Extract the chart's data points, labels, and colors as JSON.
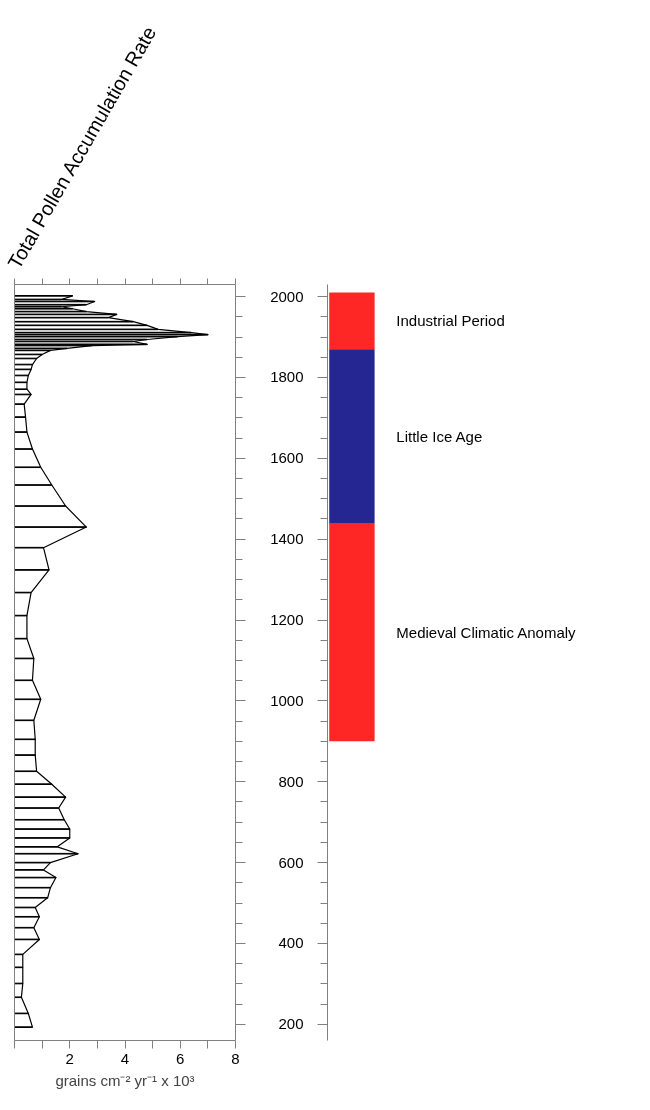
{
  "chart_data": [
    {
      "type": "bar",
      "orientation": "horizontal",
      "title": "Total Pollen Accumulation Rate",
      "xlabel": "grains cm⁻² yr⁻¹ x 10³",
      "xlim": [
        0,
        8
      ],
      "ylim": [
        160,
        2030
      ],
      "tick_labels": "x",
      "xticks": [
        {
          "value": 0,
          "label": null
        },
        {
          "value": 1,
          "label": null
        },
        2,
        {
          "value": 3,
          "label": null
        },
        4,
        {
          "value": 5,
          "label": null
        },
        6,
        {
          "value": 7,
          "label": null
        },
        8
      ],
      "yticks": [
        200,
        {
          "value": 250,
          "label": null
        },
        {
          "value": 300,
          "label": null
        },
        {
          "value": 350,
          "label": null
        },
        400,
        {
          "value": 450,
          "label": null
        },
        {
          "value": 500,
          "label": null
        },
        {
          "value": 550,
          "label": null
        },
        600,
        {
          "value": 650,
          "label": null
        },
        {
          "value": 700,
          "label": null
        },
        {
          "value": 750,
          "label": null
        },
        800,
        {
          "value": 850,
          "label": null
        },
        {
          "value": 900,
          "label": null
        },
        {
          "value": 950,
          "label": null
        },
        1000,
        {
          "value": 1050,
          "label": null
        },
        {
          "value": 1100,
          "label": null
        },
        {
          "value": 1150,
          "label": null
        },
        1200,
        {
          "value": 1250,
          "label": null
        },
        {
          "value": 1300,
          "label": null
        },
        {
          "value": 1350,
          "label": null
        },
        1400,
        {
          "value": 1450,
          "label": null
        },
        {
          "value": 1500,
          "label": null
        },
        {
          "value": 1550,
          "label": null
        },
        1600,
        {
          "value": 1650,
          "label": null
        },
        {
          "value": 1700,
          "label": null
        },
        {
          "value": 1750,
          "label": null
        },
        1800,
        {
          "value": 1850,
          "label": null
        },
        {
          "value": 1900,
          "label": null
        },
        {
          "value": 1950,
          "label": null
        },
        2000
      ],
      "series": [
        {
          "type": "bar",
          "color": "#000000",
          "x": [
            2002,
            1993,
            1988,
            1980,
            1975,
            1970,
            1963,
            1956,
            1948,
            1938,
            1929,
            1919,
            1911,
            1906,
            1901,
            1894,
            1889,
            1882,
            1879,
            1872,
            1867,
            1857,
            1847,
            1832,
            1820,
            1805,
            1788,
            1771,
            1758,
            1734,
            1702,
            1665,
            1623,
            1578,
            1534,
            1482,
            1430,
            1379,
            1324,
            1268,
            1211,
            1154,
            1105,
            1051,
            1004,
            952,
            905,
            866,
            826,
            794,
            762,
            735,
            706,
            683,
            661,
            639,
            622,
            600,
            582,
            563,
            538,
            513,
            489,
            466,
            439,
            410,
            373,
            341,
            301,
            267,
            227,
            193
          ],
          "values": [
            2.1,
            1.7,
            2.9,
            2.6,
            1.7,
            2.1,
            2.6,
            3.7,
            3.4,
            4.3,
            4.8,
            5.2,
            6.4,
            7.0,
            5.9,
            4.8,
            4.3,
            4.8,
            2.8,
            1.9,
            1.3,
            1.0,
            0.8,
            0.65,
            0.6,
            0.5,
            0.45,
            0.45,
            0.6,
            0.35,
            0.4,
            0.45,
            0.65,
            0.95,
            1.35,
            1.85,
            2.6,
            1.05,
            1.25,
            0.6,
            0.45,
            0.45,
            0.7,
            0.65,
            0.95,
            0.7,
            0.75,
            0.75,
            0.8,
            1.35,
            1.85,
            1.6,
            1.8,
            2.0,
            2.0,
            1.55,
            2.3,
            1.3,
            1.05,
            1.5,
            1.3,
            1.2,
            0.75,
            0.9,
            0.7,
            0.9,
            0.3,
            0.3,
            0.3,
            0.25,
            0.5,
            0.65
          ]
        }
      ]
    },
    {
      "type": "bar",
      "categories": [
        null
      ],
      "ylim": [
        160,
        2030
      ],
      "tick_labels": "y",
      "yticks": [
        200,
        {
          "value": 250,
          "label": null
        },
        {
          "value": 300,
          "label": null
        },
        {
          "value": 350,
          "label": null
        },
        400,
        {
          "value": 450,
          "label": null
        },
        {
          "value": 500,
          "label": null
        },
        {
          "value": 550,
          "label": null
        },
        600,
        {
          "value": 650,
          "label": null
        },
        {
          "value": 700,
          "label": null
        },
        {
          "value": 750,
          "label": null
        },
        800,
        {
          "value": 850,
          "label": null
        },
        {
          "value": 900,
          "label": null
        },
        {
          "value": 950,
          "label": null
        },
        1000,
        {
          "value": 1050,
          "label": null
        },
        {
          "value": 1100,
          "label": null
        },
        {
          "value": 1150,
          "label": null
        },
        1200,
        {
          "value": 1250,
          "label": null
        },
        {
          "value": 1300,
          "label": null
        },
        {
          "value": 1350,
          "label": null
        },
        1400,
        {
          "value": 1450,
          "label": null
        },
        {
          "value": 1500,
          "label": null
        },
        {
          "value": 1550,
          "label": null
        },
        1600,
        {
          "value": 1650,
          "label": null
        },
        {
          "value": 1700,
          "label": null
        },
        {
          "value": 1750,
          "label": null
        },
        1800,
        {
          "value": 1850,
          "label": null
        },
        {
          "value": 1900,
          "label": null
        },
        {
          "value": 1950,
          "label": null
        },
        2000
      ],
      "series": [
        {
          "name": "Industrial Period",
          "color": "#ff0000",
          "base": [
            1870
          ],
          "values": [
            140
          ]
        },
        {
          "name": "Little Ice Age",
          "color": "#000080",
          "base": [
            1440
          ],
          "values": [
            430
          ]
        },
        {
          "name": "Medieval Climatic Anomaly",
          "color": "#ff0000",
          "base": [
            900
          ],
          "values": [
            540
          ]
        }
      ]
    }
  ]
}
